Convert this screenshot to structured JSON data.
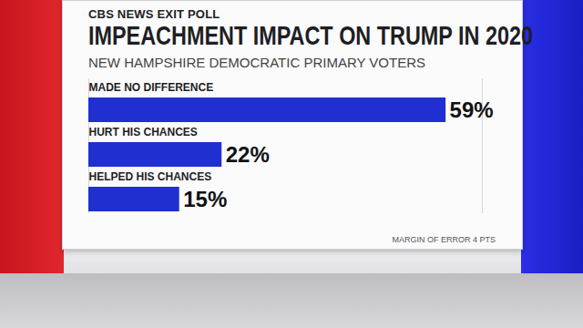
{
  "chart_data": {
    "type": "bar",
    "orientation": "horizontal",
    "title": "IMPEACHMENT IMPACT ON TRUMP IN 2020",
    "subtitle": "NEW HAMPSHIRE DEMOCRATIC PRIMARY VOTERS",
    "annotations": [
      "CBS NEWS EXIT POLL",
      "MARGIN OF ERROR 4 PTS"
    ],
    "categories": [
      "MADE NO DIFFERENCE",
      "HURT HIS CHANCES",
      "HELPED HIS CHANCES"
    ],
    "values": [
      59,
      22,
      15
    ],
    "value_labels": [
      "59%",
      "22%",
      "15%"
    ],
    "color": "#1f2fd0",
    "xlim": [
      0,
      65
    ],
    "data_labels": true,
    "tick_labels": false
  }
}
